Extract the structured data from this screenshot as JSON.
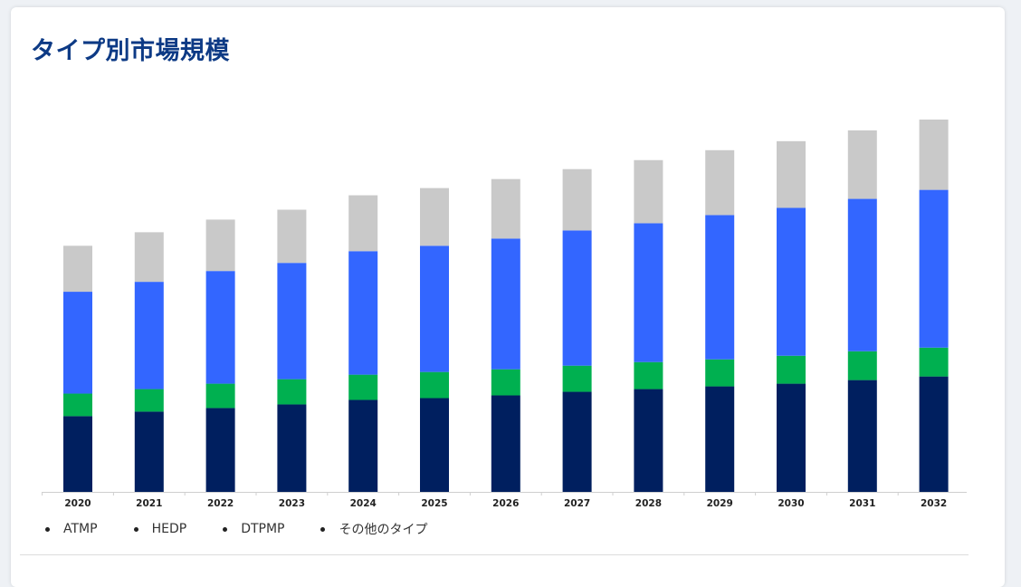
{
  "page": {
    "title": "タイプ別市場規模"
  },
  "chart_data": {
    "type": "bar",
    "stacked": true,
    "title": "タイプ別市場規模",
    "xlabel": "",
    "ylabel": "",
    "categories": [
      "2020",
      "2021",
      "2022",
      "2023",
      "2024",
      "2025",
      "2026",
      "2027",
      "2028",
      "2029",
      "2030",
      "2031",
      "2032"
    ],
    "series": [
      {
        "name": "ATMP",
        "color": "#001f5f",
        "values": [
          84,
          89,
          93,
          97,
          102,
          104,
          107,
          111,
          114,
          117,
          120,
          124,
          128
        ]
      },
      {
        "name": "HEDP",
        "color": "#00b050",
        "values": [
          25,
          25,
          27,
          28,
          28,
          29,
          29,
          29,
          30,
          30,
          31,
          32,
          32
        ]
      },
      {
        "name": "DTPMP",
        "color": "#3366ff",
        "values": [
          113,
          119,
          125,
          129,
          137,
          140,
          145,
          150,
          154,
          160,
          164,
          169,
          175
        ]
      },
      {
        "name": "その他のタイプ",
        "color": "#c9c9c9",
        "values": [
          51,
          55,
          57,
          59,
          62,
          64,
          66,
          68,
          70,
          72,
          74,
          76,
          78
        ]
      }
    ],
    "ylim": [
      0,
      420
    ],
    "grid": false,
    "legend_position": "bottom-left"
  }
}
